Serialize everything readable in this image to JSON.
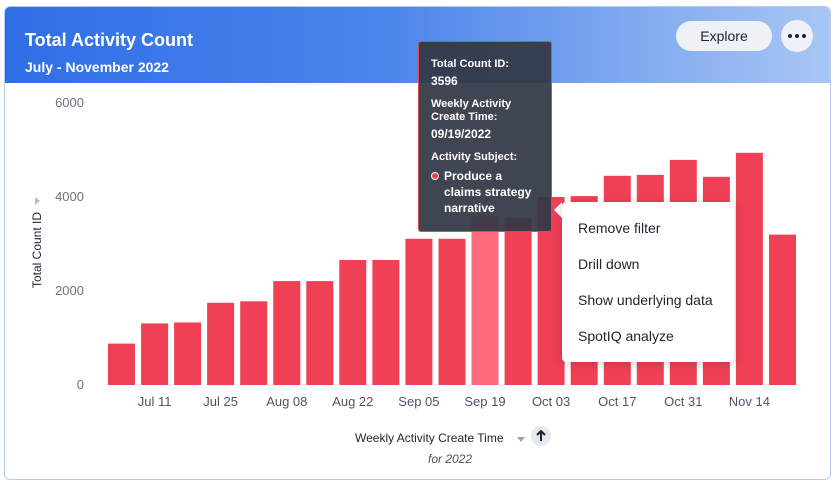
{
  "header": {
    "title": "Total Activity Count",
    "subtitle": "July - November 2022",
    "explore_label": "Explore"
  },
  "chart_data": {
    "type": "bar",
    "ylabel": "Total Count ID",
    "xlabel": "Weekly Activity Create Time",
    "x_caption": "for 2022",
    "ylim": [
      0,
      6000
    ],
    "yticks": [
      0,
      2000,
      4000,
      6000
    ],
    "x_tick_labels": [
      "Jul 11",
      "Jul 25",
      "Aug 08",
      "Aug 22",
      "Sep 05",
      "Sep 19",
      "Oct 03",
      "Oct 17",
      "Oct 31",
      "Nov 14"
    ],
    "categories": [
      "07/04/2022",
      "07/11/2022",
      "07/18/2022",
      "07/25/2022",
      "08/01/2022",
      "08/08/2022",
      "08/15/2022",
      "08/22/2022",
      "08/29/2022",
      "09/05/2022",
      "09/12/2022",
      "09/19/2022",
      "09/26/2022",
      "10/03/2022",
      "10/10/2022",
      "10/17/2022",
      "10/24/2022",
      "10/31/2022",
      "11/07/2022",
      "11/14/2022",
      "11/21/2022"
    ],
    "values": [
      880,
      1310,
      1330,
      1750,
      1780,
      2210,
      2210,
      2660,
      2660,
      3110,
      3110,
      3596,
      3560,
      4000,
      4020,
      4450,
      4470,
      4790,
      4430,
      4940,
      3200
    ],
    "highlight_index": 11,
    "bar_color": "#ef4056",
    "highlight_color": "#ff6b7c"
  },
  "tooltip": {
    "count_label": "Total Count ID:",
    "count_value": "3596",
    "time_label": "Weekly Activity Create Time:",
    "time_value": "09/19/2022",
    "subject_label": "Activity Subject:",
    "subject_value": "Produce a claims strategy narrative"
  },
  "context_menu": {
    "items": [
      "Remove filter",
      "Drill down",
      "Show underlying data",
      "SpotIQ analyze"
    ]
  }
}
